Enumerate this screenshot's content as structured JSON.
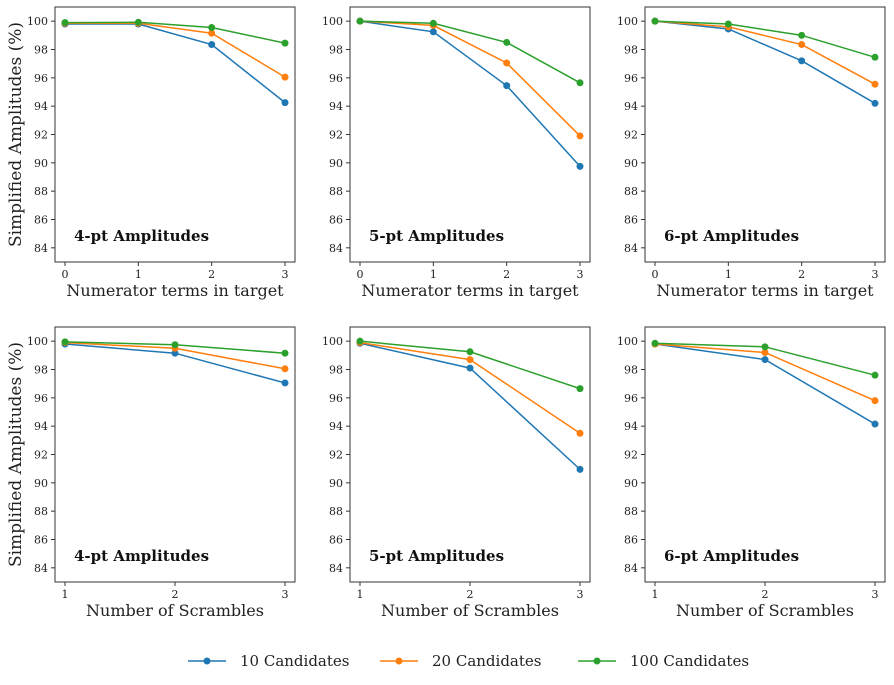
{
  "chart_data": [
    {
      "type": "line",
      "annotation": "4-pt Amplitudes",
      "xlabel": "Numerator terms in target",
      "ylabel": "Simplified Amplitudes (%)",
      "x": [
        0,
        1,
        2,
        3
      ],
      "ylim": [
        83,
        101
      ],
      "yticks": [
        84,
        86,
        88,
        90,
        92,
        94,
        96,
        98,
        100
      ],
      "series": [
        {
          "name": "10 Candidates",
          "values": [
            99.8,
            99.8,
            98.35,
            94.25
          ]
        },
        {
          "name": "20 Candidates",
          "values": [
            99.85,
            99.85,
            99.15,
            96.05
          ]
        },
        {
          "name": "100 Candidates",
          "values": [
            99.9,
            99.92,
            99.55,
            98.45
          ]
        }
      ]
    },
    {
      "type": "line",
      "annotation": "5-pt Amplitudes",
      "xlabel": "Numerator terms in target",
      "ylabel": "",
      "x": [
        0,
        1,
        2,
        3
      ],
      "ylim": [
        83,
        101
      ],
      "yticks": [
        84,
        86,
        88,
        90,
        92,
        94,
        96,
        98,
        100
      ],
      "series": [
        {
          "name": "10 Candidates",
          "values": [
            100,
            99.25,
            95.45,
            89.75
          ]
        },
        {
          "name": "20 Candidates",
          "values": [
            100,
            99.7,
            97.05,
            91.9
          ]
        },
        {
          "name": "100 Candidates",
          "values": [
            100,
            99.85,
            98.5,
            95.65
          ]
        }
      ]
    },
    {
      "type": "line",
      "annotation": "6-pt Amplitudes",
      "xlabel": "Numerator terms in target",
      "ylabel": "",
      "x": [
        0,
        1,
        2,
        3
      ],
      "ylim": [
        83,
        101
      ],
      "yticks": [
        84,
        86,
        88,
        90,
        92,
        94,
        96,
        98,
        100
      ],
      "series": [
        {
          "name": "10 Candidates",
          "values": [
            100,
            99.45,
            97.2,
            94.2
          ]
        },
        {
          "name": "20 Candidates",
          "values": [
            100,
            99.6,
            98.35,
            95.55
          ]
        },
        {
          "name": "100 Candidates",
          "values": [
            100,
            99.8,
            99.0,
            97.45
          ]
        }
      ]
    },
    {
      "type": "line",
      "annotation": "4-pt Amplitudes",
      "xlabel": "Number of Scrambles",
      "ylabel": "Simplified Amplitudes (%)",
      "x": [
        1,
        2,
        3
      ],
      "ylim": [
        83,
        101
      ],
      "yticks": [
        84,
        86,
        88,
        90,
        92,
        94,
        96,
        98,
        100
      ],
      "series": [
        {
          "name": "10 Candidates",
          "values": [
            99.8,
            99.15,
            97.05
          ]
        },
        {
          "name": "20 Candidates",
          "values": [
            99.9,
            99.5,
            98.05
          ]
        },
        {
          "name": "100 Candidates",
          "values": [
            99.95,
            99.75,
            99.15
          ]
        }
      ]
    },
    {
      "type": "line",
      "annotation": "5-pt Amplitudes",
      "xlabel": "Number of Scrambles",
      "ylabel": "",
      "x": [
        1,
        2,
        3
      ],
      "ylim": [
        83,
        101
      ],
      "yticks": [
        84,
        86,
        88,
        90,
        92,
        94,
        96,
        98,
        100
      ],
      "series": [
        {
          "name": "10 Candidates",
          "values": [
            99.85,
            98.1,
            90.95
          ]
        },
        {
          "name": "20 Candidates",
          "values": [
            99.9,
            98.7,
            93.5
          ]
        },
        {
          "name": "100 Candidates",
          "values": [
            100,
            99.25,
            96.65
          ]
        }
      ]
    },
    {
      "type": "line",
      "annotation": "6-pt Amplitudes",
      "xlabel": "Number of Scrambles",
      "ylabel": "",
      "x": [
        1,
        2,
        3
      ],
      "ylim": [
        83,
        101
      ],
      "yticks": [
        84,
        86,
        88,
        90,
        92,
        94,
        96,
        98,
        100
      ],
      "series": [
        {
          "name": "10 Candidates",
          "values": [
            99.8,
            98.7,
            94.15
          ]
        },
        {
          "name": "20 Candidates",
          "values": [
            99.8,
            99.2,
            95.8
          ]
        },
        {
          "name": "100 Candidates",
          "values": [
            99.85,
            99.6,
            97.6
          ]
        }
      ]
    }
  ],
  "legend": {
    "placement": "bottom-center",
    "entries": [
      "10 Candidates",
      "20 Candidates",
      "100 Candidates"
    ]
  },
  "colors": {
    "10 Candidates": "#1f77b4",
    "20 Candidates": "#ff7f0e",
    "100 Candidates": "#2ca02c"
  },
  "grid": false
}
